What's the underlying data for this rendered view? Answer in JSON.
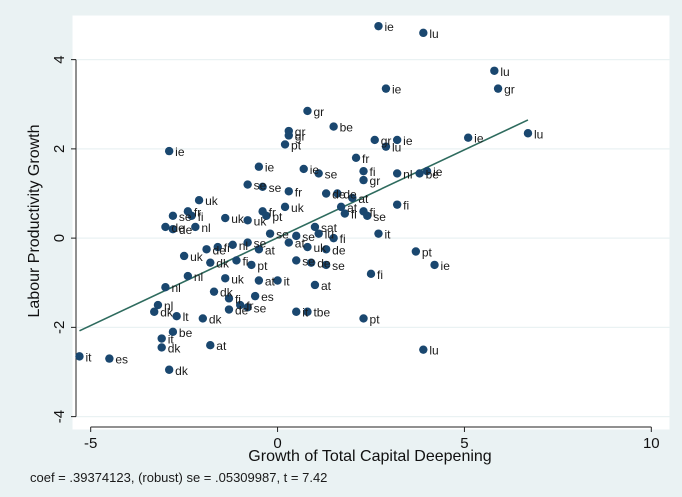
{
  "chart_data": {
    "type": "scatter",
    "xlabel": "Growth of Total Capital Deepening",
    "ylabel": "Labour Productivity Growth",
    "xlim": [
      -5.5,
      10.5
    ],
    "ylim": [
      -4.3,
      5.0
    ],
    "xticks": [
      -5,
      0,
      5,
      10
    ],
    "yticks": [
      -4,
      -2,
      0,
      2,
      4
    ],
    "grid": "horizontal",
    "fit_line": {
      "slope": 0.39374123,
      "intercept": 0.01
    },
    "colors": {
      "marker": "#1a476f",
      "fit": "#2e6b5e",
      "plot_bg": "#ffffff",
      "outer_bg": "#eaf2f3"
    },
    "points": [
      {
        "x": 2.7,
        "y": 4.75,
        "label": "ie"
      },
      {
        "x": 3.9,
        "y": 4.6,
        "label": "lu"
      },
      {
        "x": 5.8,
        "y": 3.75,
        "label": "lu"
      },
      {
        "x": 5.9,
        "y": 3.35,
        "label": "gr"
      },
      {
        "x": 2.9,
        "y": 3.35,
        "label": "ie"
      },
      {
        "x": 0.8,
        "y": 2.85,
        "label": "gr"
      },
      {
        "x": 1.5,
        "y": 2.5,
        "label": "be"
      },
      {
        "x": 0.3,
        "y": 2.4,
        "label": "gr"
      },
      {
        "x": 0.3,
        "y": 2.3,
        "label": "gr"
      },
      {
        "x": 0.2,
        "y": 2.1,
        "label": "pt"
      },
      {
        "x": 2.6,
        "y": 2.2,
        "label": "gr"
      },
      {
        "x": 3.2,
        "y": 2.2,
        "label": "ie"
      },
      {
        "x": 2.9,
        "y": 2.05,
        "label": "lu"
      },
      {
        "x": 5.1,
        "y": 2.25,
        "label": "ie"
      },
      {
        "x": 6.7,
        "y": 2.35,
        "label": "lu"
      },
      {
        "x": -2.9,
        "y": 1.95,
        "label": "ie"
      },
      {
        "x": -0.5,
        "y": 1.6,
        "label": "ie"
      },
      {
        "x": 0.7,
        "y": 1.55,
        "label": "ie"
      },
      {
        "x": 1.1,
        "y": 1.45,
        "label": "se"
      },
      {
        "x": -0.8,
        "y": 1.2,
        "label": "se"
      },
      {
        "x": -0.4,
        "y": 1.15,
        "label": "se"
      },
      {
        "x": 0.3,
        "y": 1.05,
        "label": "fr"
      },
      {
        "x": 2.1,
        "y": 1.8,
        "label": "fr"
      },
      {
        "x": 2.3,
        "y": 1.5,
        "label": "fi"
      },
      {
        "x": 2.3,
        "y": 1.3,
        "label": "gr"
      },
      {
        "x": 3.2,
        "y": 1.45,
        "label": "nl"
      },
      {
        "x": 4.0,
        "y": 1.5,
        "label": "ie"
      },
      {
        "x": 3.8,
        "y": 1.45,
        "label": "be"
      },
      {
        "x": 1.3,
        "y": 1.0,
        "label": "de"
      },
      {
        "x": 1.6,
        "y": 1.0,
        "label": "de"
      },
      {
        "x": 2.0,
        "y": 0.9,
        "label": "at"
      },
      {
        "x": -2.1,
        "y": 0.85,
        "label": "uk"
      },
      {
        "x": -2.4,
        "y": 0.6,
        "label": "fr"
      },
      {
        "x": -2.3,
        "y": 0.5,
        "label": "fi"
      },
      {
        "x": -2.8,
        "y": 0.5,
        "label": "se"
      },
      {
        "x": -2.2,
        "y": 0.25,
        "label": "nl"
      },
      {
        "x": -3.0,
        "y": 0.25,
        "label": "de"
      },
      {
        "x": -2.8,
        "y": 0.2,
        "label": "de"
      },
      {
        "x": -1.4,
        "y": 0.45,
        "label": "uk"
      },
      {
        "x": -0.4,
        "y": 0.6,
        "label": "fr"
      },
      {
        "x": 0.2,
        "y": 0.7,
        "label": "uk"
      },
      {
        "x": -0.8,
        "y": 0.4,
        "label": "uk"
      },
      {
        "x": -0.3,
        "y": 0.5,
        "label": "pt"
      },
      {
        "x": 1.7,
        "y": 0.7,
        "label": "at"
      },
      {
        "x": 1.8,
        "y": 0.55,
        "label": "fi"
      },
      {
        "x": 2.3,
        "y": 0.6,
        "label": "fi"
      },
      {
        "x": 2.4,
        "y": 0.5,
        "label": "se"
      },
      {
        "x": 3.2,
        "y": 0.75,
        "label": "fi"
      },
      {
        "x": 1.0,
        "y": 0.25,
        "label": "sat"
      },
      {
        "x": 1.1,
        "y": 0.1,
        "label": "lu"
      },
      {
        "x": 2.7,
        "y": 0.1,
        "label": "it"
      },
      {
        "x": -0.2,
        "y": 0.1,
        "label": "se"
      },
      {
        "x": 0.5,
        "y": 0.05,
        "label": "se"
      },
      {
        "x": 1.5,
        "y": 0.0,
        "label": "fi"
      },
      {
        "x": -2.5,
        "y": -0.4,
        "label": "uk"
      },
      {
        "x": -1.9,
        "y": -0.25,
        "label": "de"
      },
      {
        "x": -1.6,
        "y": -0.2,
        "label": "fi"
      },
      {
        "x": -1.2,
        "y": -0.15,
        "label": "nl"
      },
      {
        "x": -0.8,
        "y": -0.1,
        "label": "se"
      },
      {
        "x": -0.5,
        "y": -0.25,
        "label": "at"
      },
      {
        "x": 0.3,
        "y": -0.1,
        "label": "at"
      },
      {
        "x": 0.8,
        "y": -0.2,
        "label": "uk"
      },
      {
        "x": 1.3,
        "y": -0.25,
        "label": "de"
      },
      {
        "x": 0.5,
        "y": -0.5,
        "label": "se"
      },
      {
        "x": 0.9,
        "y": -0.55,
        "label": "de"
      },
      {
        "x": 1.3,
        "y": -0.6,
        "label": "se"
      },
      {
        "x": -1.1,
        "y": -0.5,
        "label": "fi"
      },
      {
        "x": -0.7,
        "y": -0.6,
        "label": "pt"
      },
      {
        "x": -1.8,
        "y": -0.55,
        "label": "dk"
      },
      {
        "x": -2.4,
        "y": -0.85,
        "label": "nl"
      },
      {
        "x": -1.4,
        "y": -0.9,
        "label": "uk"
      },
      {
        "x": -0.5,
        "y": -0.95,
        "label": "at"
      },
      {
        "x": 0.0,
        "y": -0.95,
        "label": "it"
      },
      {
        "x": 1.0,
        "y": -1.05,
        "label": "at"
      },
      {
        "x": 2.5,
        "y": -0.8,
        "label": "fi"
      },
      {
        "x": 3.7,
        "y": -0.3,
        "label": "pt"
      },
      {
        "x": 4.2,
        "y": -0.6,
        "label": "ie"
      },
      {
        "x": -3.0,
        "y": -1.1,
        "label": "nl"
      },
      {
        "x": -1.7,
        "y": -1.2,
        "label": "dk"
      },
      {
        "x": -0.6,
        "y": -1.3,
        "label": "es"
      },
      {
        "x": -1.3,
        "y": -1.35,
        "label": "fi"
      },
      {
        "x": -3.2,
        "y": -1.5,
        "label": "nl"
      },
      {
        "x": -1.0,
        "y": -1.5,
        "label": "fr"
      },
      {
        "x": -0.8,
        "y": -1.55,
        "label": "se"
      },
      {
        "x": -1.3,
        "y": -1.6,
        "label": "de"
      },
      {
        "x": -3.3,
        "y": -1.65,
        "label": "dk"
      },
      {
        "x": -2.7,
        "y": -1.75,
        "label": "lt"
      },
      {
        "x": -2.0,
        "y": -1.8,
        "label": "dk"
      },
      {
        "x": 0.5,
        "y": -1.65,
        "label": "it"
      },
      {
        "x": 0.8,
        "y": -1.65,
        "label": "tbe"
      },
      {
        "x": 2.3,
        "y": -1.8,
        "label": "pt"
      },
      {
        "x": -2.8,
        "y": -2.1,
        "label": "be"
      },
      {
        "x": -3.1,
        "y": -2.25,
        "label": "it"
      },
      {
        "x": -3.1,
        "y": -2.45,
        "label": "dk"
      },
      {
        "x": -1.8,
        "y": -2.4,
        "label": "at"
      },
      {
        "x": -5.3,
        "y": -2.65,
        "label": "it"
      },
      {
        "x": -4.5,
        "y": -2.7,
        "label": "es"
      },
      {
        "x": -2.9,
        "y": -2.95,
        "label": "dk"
      },
      {
        "x": 3.9,
        "y": -2.5,
        "label": "lu"
      }
    ]
  },
  "footer_note": "coef = .39374123, (robust) se = .05309987, t = 7.42"
}
